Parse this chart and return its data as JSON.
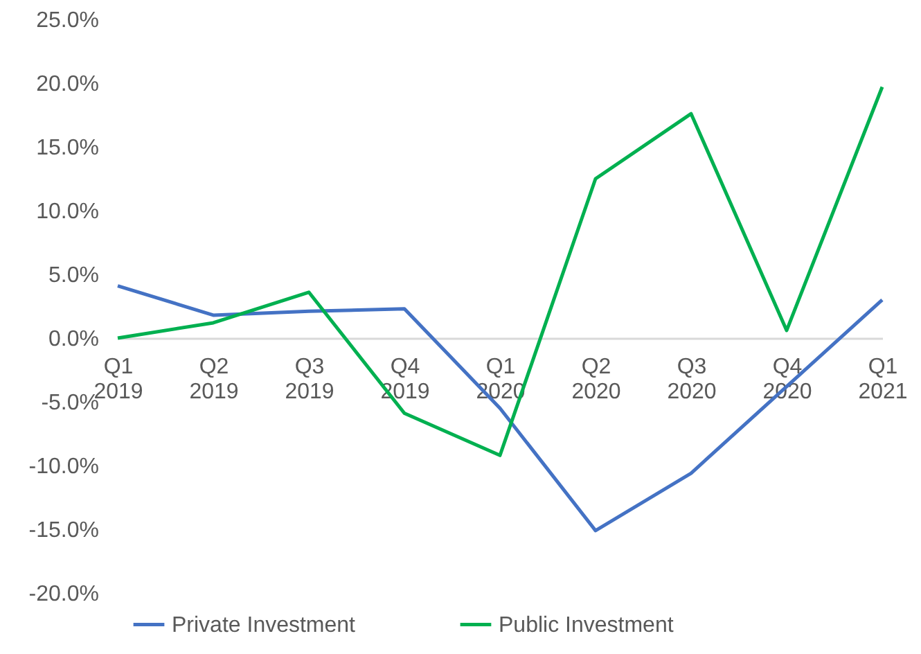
{
  "chart_data": {
    "type": "line",
    "categories": [
      "Q1 2019",
      "Q2 2019",
      "Q3 2019",
      "Q4 2019",
      "Q1 2020",
      "Q2 2020",
      "Q3 2020",
      "Q4 2020",
      "Q1 2021"
    ],
    "series": [
      {
        "name": "Private Investment",
        "color": "#4472c4",
        "values": [
          4.1,
          1.8,
          2.1,
          2.3,
          -5.5,
          -15.1,
          -10.6,
          -3.8,
          3.0
        ]
      },
      {
        "name": "Public Investment",
        "color": "#00b050",
        "values": [
          0.0,
          1.2,
          3.6,
          -5.9,
          -9.2,
          12.5,
          17.6,
          0.6,
          19.7
        ]
      }
    ],
    "ylim": [
      -20,
      25
    ],
    "yticks": [
      {
        "value": -20,
        "label": "-20.0%"
      },
      {
        "value": -15,
        "label": "-15.0%"
      },
      {
        "value": -10,
        "label": "-10.0%"
      },
      {
        "value": -5,
        "label": "-5.0%"
      },
      {
        "value": 0,
        "label": "0.0%"
      },
      {
        "value": 5,
        "label": "5.0%"
      },
      {
        "value": 10,
        "label": "10.0%"
      },
      {
        "value": 15,
        "label": "15.0%"
      },
      {
        "value": 20,
        "label": "20.0%"
      },
      {
        "value": 25,
        "label": "25.0%"
      }
    ],
    "grid": false,
    "legend": "bottom",
    "marker": "none",
    "line_style": "solid"
  }
}
